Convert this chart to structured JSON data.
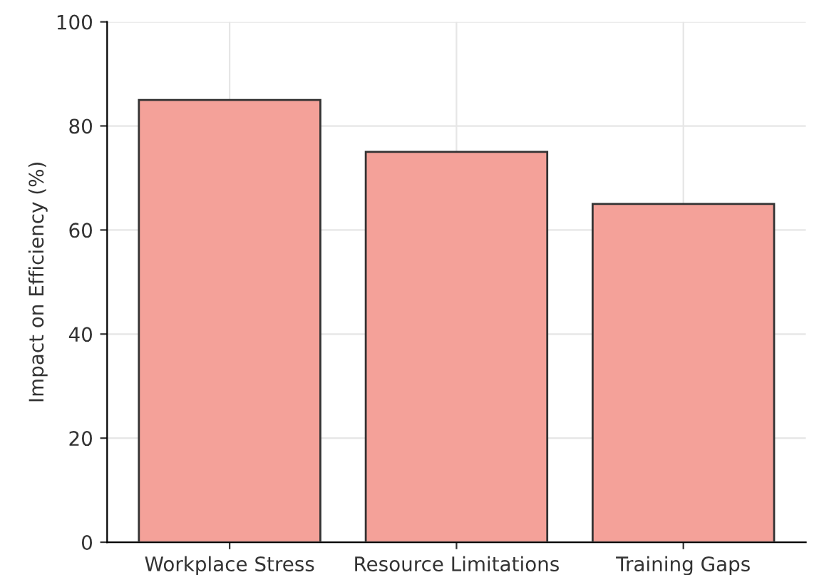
{
  "chart_data": {
    "type": "bar",
    "ylabel": "Impact on Efficiency (%)",
    "categories": [
      "Workplace Stress",
      "Resource Limitations",
      "Training Gaps"
    ],
    "values": [
      85,
      75,
      65
    ],
    "color": "#f4a199",
    "ylim": [
      0,
      100
    ],
    "yticks": [
      0,
      20,
      40,
      60,
      80,
      100
    ],
    "grid": true
  }
}
